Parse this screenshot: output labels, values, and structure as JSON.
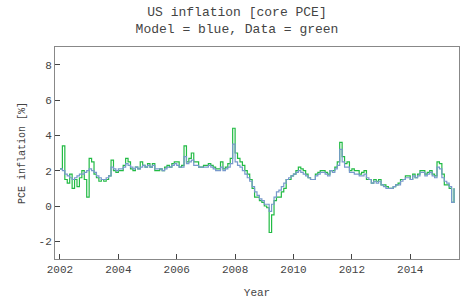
{
  "chart_data": {
    "type": "line",
    "line_style": "step",
    "title": "US inflation [core PCE]",
    "subtitle": "Model = blue, Data = green",
    "x_label": "Year",
    "y_label": "PCE inflation [%]",
    "xlim": [
      2001.83,
      2015.67
    ],
    "xticks": [
      2002,
      2004,
      2006,
      2008,
      2010,
      2012,
      2014
    ],
    "ylim": [
      -3,
      9
    ],
    "yticks": [
      -2,
      0,
      2,
      4,
      6,
      8
    ],
    "grid": false,
    "x": [
      2002,
      2002.0833333333333,
      2002.1666666666667,
      2002.25,
      2002.3333333333333,
      2002.4166666666667,
      2002.5,
      2002.5833333333333,
      2002.6666666666667,
      2002.75,
      2002.8333333333333,
      2002.9166666666667,
      2003,
      2003.0833333333333,
      2003.1666666666667,
      2003.25,
      2003.3333333333333,
      2003.4166666666667,
      2003.5,
      2003.5833333333333,
      2003.6666666666667,
      2003.75,
      2003.8333333333333,
      2003.9166666666667,
      2004,
      2004.0833333333333,
      2004.1666666666667,
      2004.25,
      2004.3333333333333,
      2004.4166666666667,
      2004.5,
      2004.5833333333333,
      2004.6666666666667,
      2004.75,
      2004.8333333333333,
      2004.9166666666667,
      2005,
      2005.0833333333333,
      2005.1666666666667,
      2005.25,
      2005.3333333333333,
      2005.4166666666667,
      2005.5,
      2005.5833333333333,
      2005.6666666666667,
      2005.75,
      2005.8333333333333,
      2005.9166666666667,
      2006,
      2006.0833333333333,
      2006.1666666666667,
      2006.25,
      2006.3333333333333,
      2006.4166666666667,
      2006.5,
      2006.5833333333333,
      2006.6666666666667,
      2006.75,
      2006.8333333333333,
      2006.9166666666667,
      2007,
      2007.0833333333333,
      2007.1666666666667,
      2007.25,
      2007.3333333333333,
      2007.4166666666667,
      2007.5,
      2007.5833333333333,
      2007.6666666666667,
      2007.75,
      2007.8333333333333,
      2007.9166666666667,
      2008,
      2008.0833333333333,
      2008.1666666666667,
      2008.25,
      2008.3333333333333,
      2008.4166666666667,
      2008.5,
      2008.5833333333333,
      2008.6666666666667,
      2008.75,
      2008.8333333333333,
      2008.9166666666667,
      2009,
      2009.0833333333333,
      2009.1666666666667,
      2009.25,
      2009.3333333333333,
      2009.4166666666667,
      2009.5,
      2009.5833333333333,
      2009.6666666666667,
      2009.75,
      2009.8333333333333,
      2009.9166666666667,
      2010,
      2010.0833333333333,
      2010.1666666666667,
      2010.25,
      2010.3333333333333,
      2010.4166666666667,
      2010.5,
      2010.5833333333333,
      2010.6666666666667,
      2010.75,
      2010.8333333333333,
      2010.9166666666667,
      2011,
      2011.0833333333333,
      2011.1666666666667,
      2011.25,
      2011.3333333333333,
      2011.4166666666667,
      2011.5,
      2011.5833333333333,
      2011.6666666666667,
      2011.75,
      2011.8333333333333,
      2011.9166666666667,
      2012,
      2012.0833333333333,
      2012.1666666666667,
      2012.25,
      2012.3333333333333,
      2012.4166666666667,
      2012.5,
      2012.5833333333333,
      2012.6666666666667,
      2012.75,
      2012.8333333333333,
      2012.9166666666667,
      2013,
      2013.0833333333333,
      2013.1666666666667,
      2013.25,
      2013.3333333333333,
      2013.4166666666667,
      2013.5,
      2013.5833333333333,
      2013.6666666666667,
      2013.75,
      2013.8333333333333,
      2013.9166666666667,
      2014,
      2014.0833333333333,
      2014.1666666666667,
      2014.25,
      2014.3333333333333,
      2014.4166666666667,
      2014.5,
      2014.5833333333333,
      2014.6666666666667,
      2014.75,
      2014.8333333333333,
      2014.9166666666667,
      2015,
      2015.0833333333333,
      2015.1666666666667,
      2015.25,
      2015.3333333333333,
      2015.4166666666667,
      2015.5
    ],
    "series": [
      {
        "color": "#22bb44",
        "values": [
          2.1,
          3.4,
          1.5,
          1.3,
          1.8,
          1.0,
          1.5,
          1.1,
          1.6,
          2.0,
          1.5,
          0.5,
          2.7,
          2.5,
          1.8,
          1.6,
          1.4,
          1.5,
          1.4,
          1.5,
          1.7,
          2.6,
          2.0,
          1.9,
          2.0,
          2.0,
          2.3,
          2.7,
          2.5,
          2.1,
          2.0,
          2.2,
          2.1,
          2.5,
          2.3,
          2.2,
          2.4,
          2.2,
          2.4,
          2.0,
          2.0,
          2.1,
          2.0,
          2.2,
          2.3,
          2.2,
          2.4,
          2.5,
          2.5,
          2.2,
          2.3,
          3.4,
          2.5,
          2.7,
          3.0,
          2.5,
          2.5,
          2.2,
          2.2,
          2.3,
          2.3,
          2.4,
          2.3,
          2.2,
          2.1,
          2.1,
          2.5,
          2.1,
          2.2,
          2.4,
          2.7,
          4.4,
          3.0,
          2.7,
          2.5,
          2.3,
          2.0,
          1.8,
          1.5,
          1.0,
          0.5,
          0.5,
          0.3,
          0.2,
          0.0,
          -0.1,
          -1.5,
          -0.5,
          0.3,
          0.5,
          0.5,
          0.8,
          1.0,
          1.5,
          1.5,
          1.7,
          1.8,
          2.0,
          2.2,
          2.1,
          2.0,
          1.8,
          1.6,
          1.5,
          1.5,
          1.8,
          1.9,
          2.0,
          2.0,
          1.9,
          1.8,
          2.0,
          2.0,
          2.2,
          2.5,
          3.6,
          2.8,
          2.4,
          2.5,
          2.0,
          2.1,
          2.0,
          2.0,
          1.8,
          1.9,
          2.0,
          1.5,
          1.5,
          1.3,
          1.5,
          1.4,
          1.5,
          1.2,
          1.2,
          1.1,
          1.0,
          1.0,
          1.1,
          1.2,
          1.3,
          1.5,
          1.5,
          1.7,
          1.7,
          1.5,
          1.8,
          1.6,
          1.8,
          2.0,
          2.0,
          1.8,
          1.9,
          2.0,
          1.8,
          1.7,
          2.5,
          2.4,
          1.8,
          1.2,
          1.2,
          1.0,
          0.2,
          1.0
        ]
      },
      {
        "color": "#7799cc",
        "values": [
          2.1,
          2.0,
          1.8,
          1.7,
          1.6,
          1.5,
          1.6,
          1.7,
          1.8,
          1.8,
          1.9,
          2.0,
          2.1,
          2.0,
          1.9,
          1.7,
          1.6,
          1.5,
          1.5,
          1.6,
          1.7,
          2.2,
          2.1,
          2.0,
          2.1,
          2.1,
          2.2,
          2.4,
          2.3,
          2.2,
          2.1,
          2.2,
          2.1,
          2.2,
          2.3,
          2.2,
          2.3,
          2.2,
          2.3,
          2.1,
          2.1,
          2.1,
          2.0,
          2.1,
          2.2,
          2.2,
          2.3,
          2.4,
          2.3,
          2.2,
          2.2,
          2.8,
          2.4,
          2.5,
          2.6,
          2.3,
          2.3,
          2.2,
          2.2,
          2.2,
          2.2,
          2.3,
          2.2,
          2.1,
          2.0,
          2.0,
          2.2,
          2.0,
          2.1,
          2.2,
          2.4,
          3.5,
          2.5,
          2.3,
          2.2,
          2.0,
          1.8,
          1.6,
          1.4,
          1.1,
          0.8,
          0.6,
          0.4,
          0.3,
          0.1,
          0.1,
          -0.3,
          0.1,
          0.5,
          0.8,
          0.9,
          1.1,
          1.3,
          1.5,
          1.6,
          1.7,
          1.8,
          1.9,
          2.0,
          1.9,
          1.8,
          1.7,
          1.6,
          1.5,
          1.5,
          1.7,
          1.8,
          1.9,
          1.9,
          1.8,
          1.7,
          2.0,
          1.9,
          2.1,
          2.3,
          3.2,
          2.5,
          2.2,
          2.2,
          1.9,
          1.9,
          1.8,
          1.8,
          1.7,
          1.7,
          1.8,
          1.6,
          1.5,
          1.3,
          1.4,
          1.3,
          1.4,
          1.2,
          1.1,
          1.0,
          1.0,
          1.0,
          1.1,
          1.2,
          1.2,
          1.4,
          1.5,
          1.6,
          1.6,
          1.5,
          1.7,
          1.6,
          1.7,
          1.9,
          1.9,
          1.7,
          1.8,
          1.9,
          1.7,
          1.6,
          2.2,
          2.1,
          1.6,
          1.4,
          1.3,
          1.1,
          0.2,
          1.0
        ]
      }
    ]
  }
}
